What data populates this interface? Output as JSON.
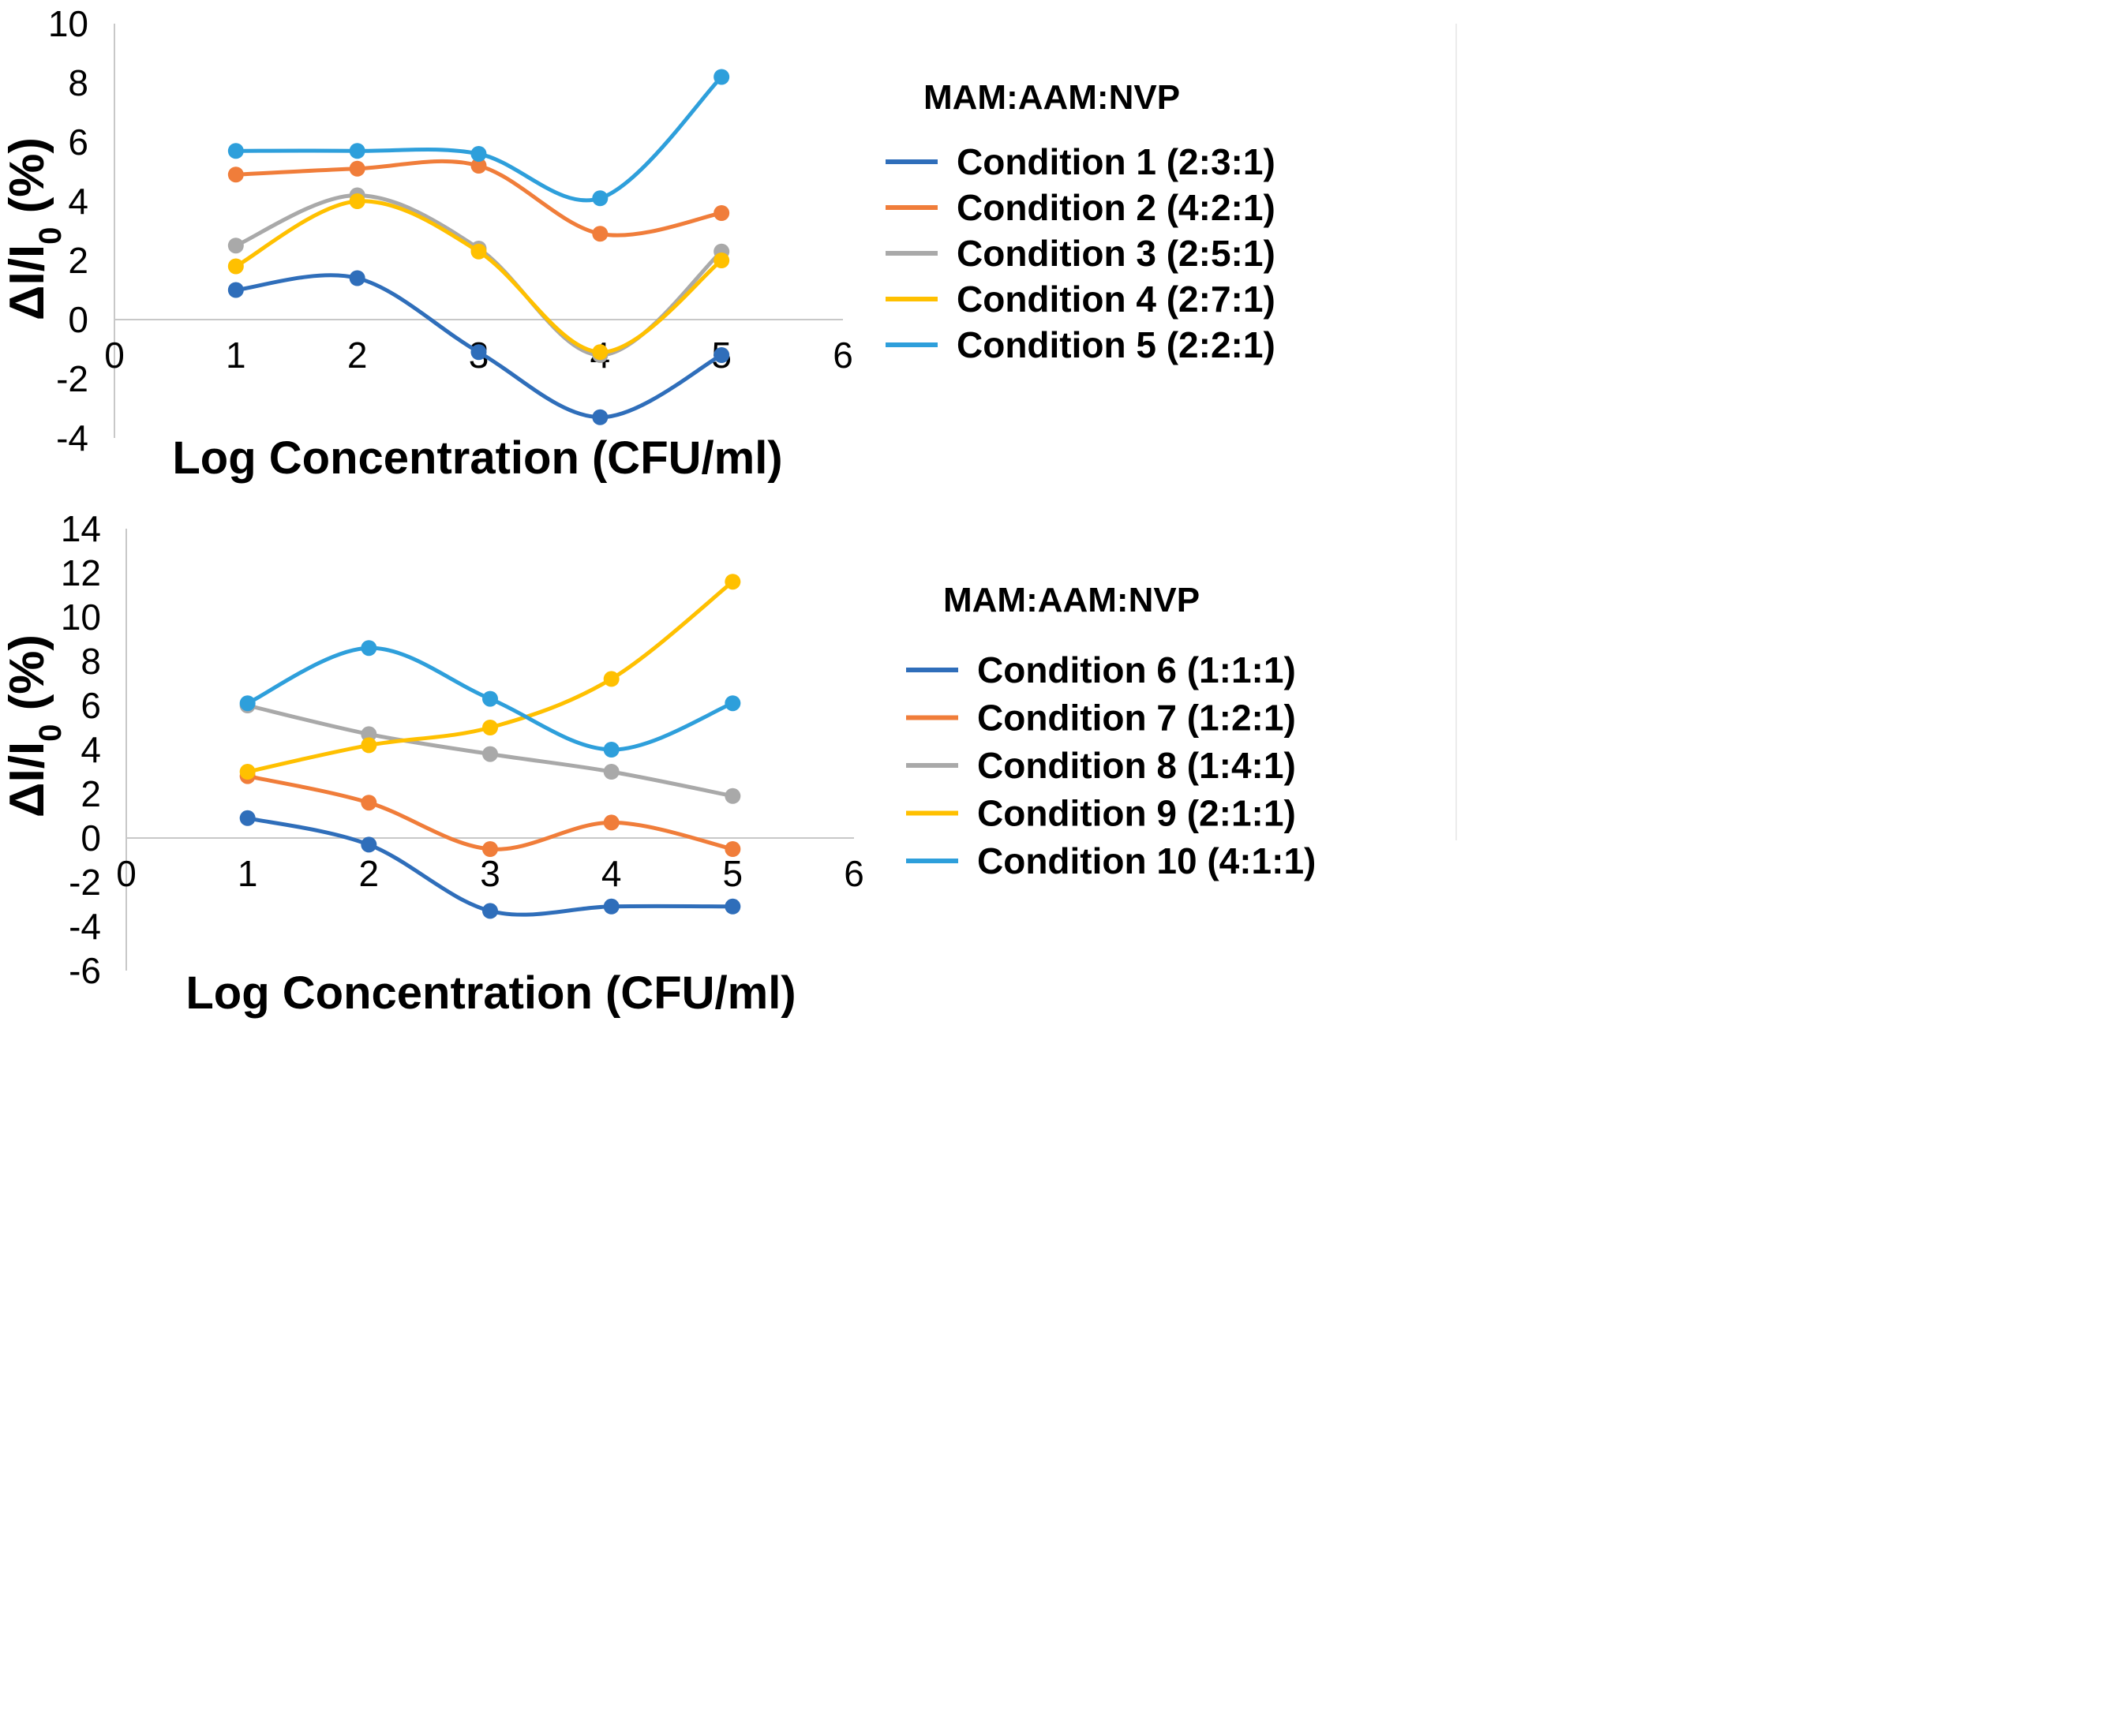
{
  "chart_data": [
    {
      "type": "line",
      "xlabel": "Log Concentration  (CFU/ml)",
      "ylabel": "ΔI/I0 (%)",
      "ylabel_main": "ΔI/I",
      "ylabel_sub": "0",
      "ylabel_unit": " (%)",
      "xlim": [
        0,
        6
      ],
      "ylim": [
        -4,
        10
      ],
      "xticks": [
        "0",
        "1",
        "2",
        "3",
        "4",
        "5",
        "6"
      ],
      "yticks": [
        "-4",
        "-2",
        "0",
        "2",
        "4",
        "6",
        "8",
        "10"
      ],
      "grid": false,
      "legend_title": "MAM:AAM:NVP",
      "legend_position": "right",
      "x": [
        1,
        2,
        3,
        4,
        5
      ],
      "series": [
        {
          "name": "Condition 1 (2:3:1)",
          "color": "#2F6EBA",
          "values": [
            1.0,
            1.4,
            -1.1,
            -3.3,
            -1.2
          ]
        },
        {
          "name": "Condition 2 (4:2:1)",
          "color": "#F07D3A",
          "values": [
            4.9,
            5.1,
            5.2,
            2.9,
            3.6
          ]
        },
        {
          "name": "Condition 3 (2:5:1)",
          "color": "#A9A9A9",
          "values": [
            2.5,
            4.2,
            2.4,
            -1.2,
            2.3
          ]
        },
        {
          "name": "Condition 4 (2:7:1)",
          "color": "#FFC000",
          "values": [
            1.8,
            4.0,
            2.3,
            -1.1,
            2.0
          ]
        },
        {
          "name": "Condition 5 (2:2:1)",
          "color": "#2E9FDB",
          "values": [
            5.7,
            5.7,
            5.6,
            4.1,
            8.2
          ]
        }
      ]
    },
    {
      "type": "line",
      "xlabel": "Log Concentration (CFU/ml)",
      "ylabel": "ΔI/I0 (%)",
      "ylabel_main": "ΔI/I",
      "ylabel_sub": "0",
      "ylabel_unit": " (%)",
      "xlim": [
        0,
        6
      ],
      "ylim": [
        -6,
        14
      ],
      "xticks": [
        "0",
        "1",
        "2",
        "3",
        "4",
        "5",
        "6"
      ],
      "yticks": [
        "-6",
        "-4",
        "-2",
        "0",
        "2",
        "4",
        "6",
        "8",
        "10",
        "12",
        "14"
      ],
      "grid": false,
      "legend_title": "MAM:AAM:NVP",
      "legend_position": "right",
      "x": [
        1,
        2,
        3,
        4,
        5
      ],
      "series": [
        {
          "name": "Condition 6 (1:1:1)",
          "color": "#2F6EBA",
          "values": [
            0.9,
            -0.3,
            -3.3,
            -3.1,
            -3.1
          ]
        },
        {
          "name": "Condition 7 (1:2:1)",
          "color": "#F07D3A",
          "values": [
            2.8,
            1.6,
            -0.5,
            0.7,
            -0.5
          ]
        },
        {
          "name": "Condition 8 (1:4:1)",
          "color": "#A9A9A9",
          "values": [
            6.0,
            4.7,
            3.8,
            3.0,
            1.9
          ]
        },
        {
          "name": "Condition 9 (2:1:1)",
          "color": "#FFC000",
          "values": [
            3.0,
            4.2,
            5.0,
            7.2,
            11.6
          ]
        },
        {
          "name": "Condition 10 (4:1:1)",
          "color": "#2E9FDB",
          "values": [
            6.1,
            8.6,
            6.3,
            4.0,
            6.1
          ]
        }
      ]
    }
  ]
}
